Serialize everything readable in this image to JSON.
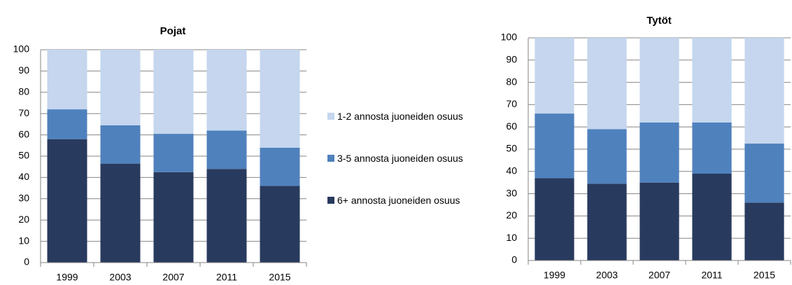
{
  "chart_data": [
    {
      "type": "bar",
      "stacked": true,
      "title": "Pojat",
      "categories": [
        "1999",
        "2003",
        "2007",
        "2011",
        "2015"
      ],
      "series": [
        {
          "name": "6+ annosta juoneiden osuus",
          "color": "#283a5e",
          "values": [
            58,
            46.5,
            42.5,
            44,
            36
          ]
        },
        {
          "name": "3-5 annosta juoneiden osuus",
          "color": "#4f81bd",
          "values": [
            14,
            18,
            18,
            18,
            18
          ]
        },
        {
          "name": "1-2 annosta juoneiden osuus",
          "color": "#c5d6ee",
          "values": [
            28,
            35.5,
            39.5,
            38,
            46
          ]
        }
      ],
      "ylim": [
        0,
        100
      ],
      "yticks": [
        0,
        10,
        20,
        30,
        40,
        50,
        60,
        70,
        80,
        90,
        100
      ],
      "grid": true,
      "legend": "right"
    },
    {
      "type": "bar",
      "stacked": true,
      "title": "Tytöt",
      "categories": [
        "1999",
        "2003",
        "2007",
        "2011",
        "2015"
      ],
      "series": [
        {
          "color": "#283a5e",
          "values": [
            37,
            34.5,
            35,
            39,
            26
          ]
        },
        {
          "color": "#4f81bd",
          "values": [
            29,
            24.5,
            27,
            23,
            26.5
          ]
        },
        {
          "color": "#c5d6ee",
          "values": [
            34,
            41,
            38,
            38,
            47.5
          ]
        }
      ],
      "ylim": [
        0,
        100
      ],
      "yticks": [
        0,
        10,
        20,
        30,
        40,
        50,
        60,
        70,
        80,
        90,
        100
      ],
      "grid": true
    }
  ]
}
